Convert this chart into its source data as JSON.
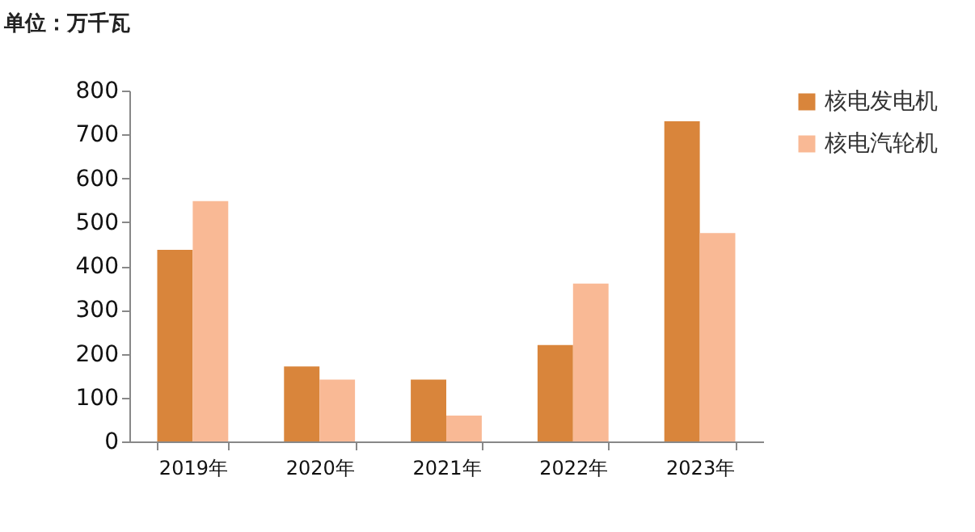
{
  "chart_data": {
    "type": "bar",
    "ylabel": "单位：万千瓦",
    "categories": [
      "2019年",
      "2020年",
      "2021年",
      "2022年",
      "2023年"
    ],
    "series": [
      {
        "name": "核电发电机",
        "color": "#d9853b",
        "values": [
          437,
          171,
          141,
          220,
          730
        ]
      },
      {
        "name": "核电汽轮机",
        "color": "#f9b995",
        "values": [
          548,
          141,
          59,
          360,
          475
        ]
      }
    ],
    "ylim": [
      0,
      800
    ],
    "yticks": [
      0,
      100,
      200,
      300,
      400,
      500,
      600,
      700,
      800
    ],
    "grid": false,
    "legend": "right"
  }
}
